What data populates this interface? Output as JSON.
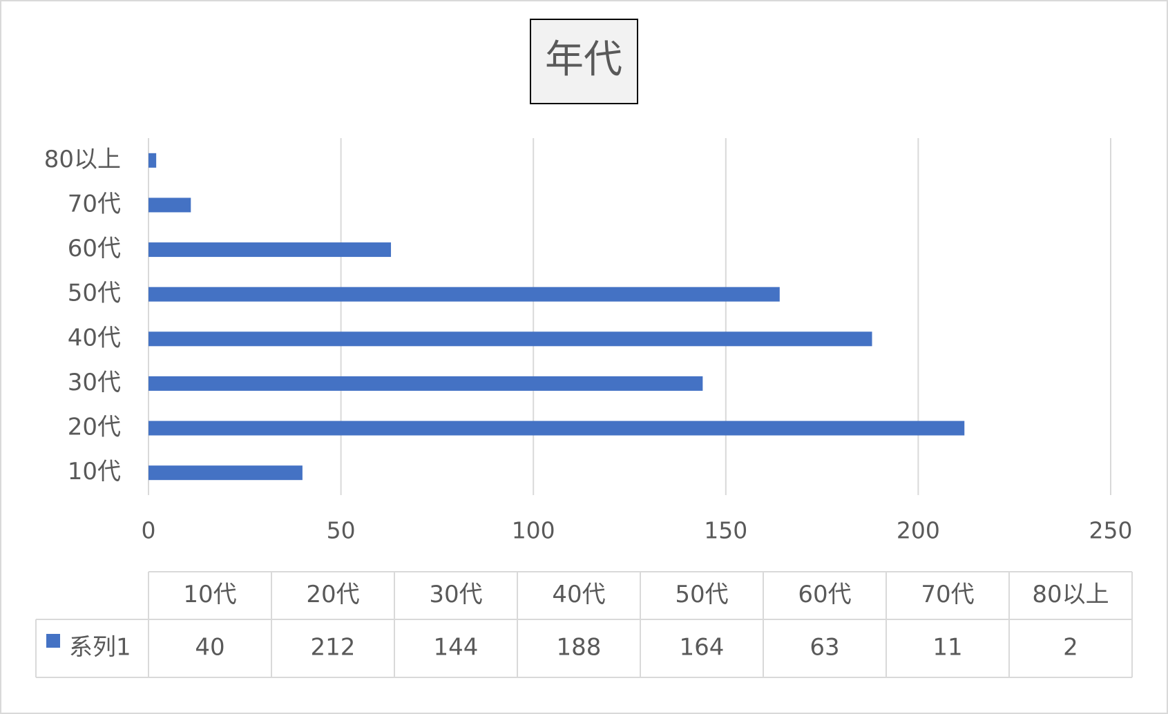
{
  "chart_data": {
    "type": "barh",
    "title": "年代",
    "categories": [
      "10代",
      "20代",
      "30代",
      "40代",
      "50代",
      "60代",
      "70代",
      "80以上"
    ],
    "series": [
      {
        "name": "系列1",
        "color": "#4472c4",
        "values": [
          40,
          212,
          144,
          188,
          164,
          63,
          11,
          2
        ]
      }
    ],
    "xlim": [
      0,
      250
    ],
    "xticks": [
      0,
      50,
      100,
      150,
      200,
      250
    ],
    "grid": true,
    "data_table": true
  }
}
